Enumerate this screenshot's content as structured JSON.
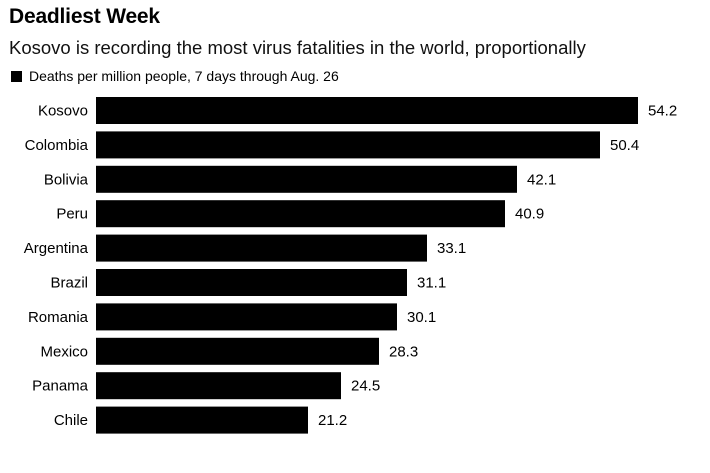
{
  "chart_data": {
    "type": "bar",
    "orientation": "horizontal",
    "title": "Deadliest Week",
    "subtitle": "Kosovo is recording the most virus fatalities in the world, proportionally",
    "legend": [
      "Deaths per million people, 7 days through Aug. 26"
    ],
    "categories": [
      "Kosovo",
      "Colombia",
      "Bolivia",
      "Peru",
      "Argentina",
      "Brazil",
      "Romania",
      "Mexico",
      "Panama",
      "Chile"
    ],
    "values": [
      54.2,
      50.4,
      42.1,
      40.9,
      33.1,
      31.1,
      30.1,
      28.3,
      24.5,
      21.2
    ],
    "value_labels": [
      "54.2",
      "50.4",
      "42.1",
      "40.9",
      "33.1",
      "31.1",
      "30.1",
      "28.3",
      "24.5",
      "21.2"
    ],
    "xlim": [
      0,
      54.2
    ],
    "bar_color": "#000000",
    "grid": false
  }
}
